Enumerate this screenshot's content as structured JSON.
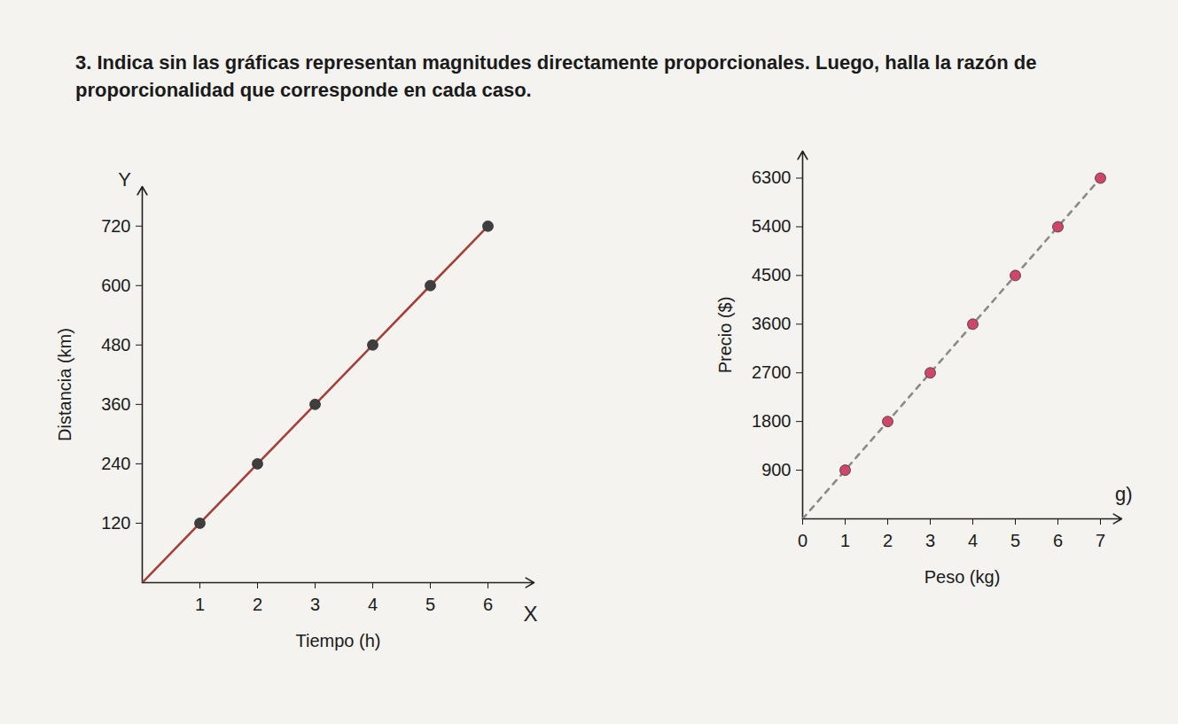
{
  "heading": "3. Indica sin las gráficas representan magnitudes directamente proporcionales. Luego, halla la razón de proporcionalidad que corresponde en cada caso.",
  "chart_data": [
    {
      "type": "line",
      "x_label": "Tiempo (h)",
      "y_label": "Distancia (km)",
      "x_symbol": "X",
      "y_symbol": "Y",
      "x": [
        0,
        1,
        2,
        3,
        4,
        5,
        6
      ],
      "series": [
        {
          "type": "line",
          "color": "#a3403a",
          "line_style": "solid",
          "values": [
            0,
            120,
            240,
            360,
            480,
            600,
            720
          ]
        },
        {
          "type": "scatter",
          "color": "#3e3e3e",
          "marker": "circle",
          "values": [
            null,
            120,
            240,
            360,
            480,
            600,
            720
          ]
        }
      ],
      "xlim": [
        0,
        6.8
      ],
      "ylim": [
        0,
        800
      ],
      "xticks": [
        1,
        2,
        3,
        4,
        5,
        6
      ],
      "yticks": [
        120,
        240,
        360,
        480,
        600,
        720
      ]
    },
    {
      "type": "line",
      "x_label": "Peso (kg)",
      "y_label": "Precio ($)",
      "annotation": "g)",
      "x": [
        0,
        1,
        2,
        3,
        4,
        5,
        6,
        7
      ],
      "series": [
        {
          "type": "line",
          "color": "#8a8a8a",
          "line_style": "dashed",
          "values": [
            0,
            900,
            1800,
            2700,
            3600,
            4500,
            5400,
            6300
          ]
        },
        {
          "type": "scatter",
          "color": "#d0456a",
          "marker": "circle",
          "values": [
            null,
            900,
            1800,
            2700,
            3600,
            4500,
            5400,
            6300
          ]
        }
      ],
      "xlim": [
        0,
        7.5
      ],
      "ylim": [
        0,
        6800
      ],
      "xticks": [
        0,
        1,
        2,
        3,
        4,
        5,
        6,
        7
      ],
      "yticks": [
        900,
        1800,
        2700,
        3600,
        4500,
        5400,
        6300
      ]
    }
  ]
}
